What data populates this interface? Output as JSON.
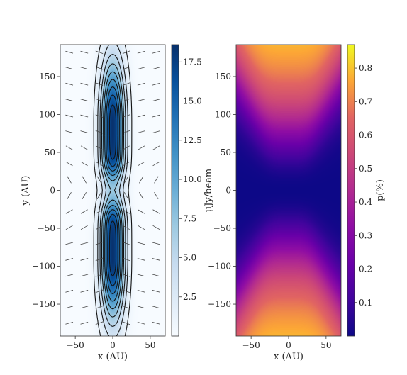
{
  "chart_data": [
    {
      "type": "heatmap",
      "subtype": "contour-with-polarization-vectors",
      "xlabel": "x (AU)",
      "ylabel": "y (AU)",
      "xlim": [
        -70,
        70
      ],
      "ylim": [
        -192,
        192
      ],
      "xticks": [
        -50,
        0,
        50
      ],
      "xtick_labels": [
        "−50",
        "0",
        "50"
      ],
      "yticks": [
        -150,
        -100,
        -50,
        0,
        50,
        100,
        150
      ],
      "ytick_labels": [
        "−150",
        "−100",
        "−50",
        "0",
        "50",
        "100",
        "150"
      ],
      "colormap": "Blues",
      "colorbar": {
        "label": "μJy/beam",
        "range": [
          0,
          18.6
        ],
        "ticks": [
          2.5,
          5.0,
          7.5,
          10.0,
          12.5,
          15.0,
          17.5
        ],
        "tick_labels": [
          "2.5",
          "5.0",
          "7.5",
          "10.0",
          "12.5",
          "15.0",
          "17.5"
        ]
      },
      "intensity_peaks": [
        {
          "x": 0,
          "y": 90,
          "value": 18.5
        },
        {
          "x": 0,
          "y": -90,
          "value": 18.5
        }
      ],
      "intensity_at_center": 6.5,
      "contour_levels": [
        1,
        3,
        5,
        7,
        9,
        11,
        13,
        15,
        17
      ],
      "vectors": {
        "x": [
          -58,
          -38,
          -18,
          18,
          38,
          58
        ],
        "y": [
          -175,
          -154,
          -133,
          -112,
          -91,
          -70,
          -49,
          -28,
          -7,
          14,
          35,
          56,
          77,
          98,
          119,
          140,
          161,
          182
        ]
      }
    },
    {
      "type": "heatmap",
      "xlabel": "x (AU)",
      "ylabel": "",
      "xlim": [
        -70,
        70
      ],
      "ylim": [
        -192,
        192
      ],
      "xticks": [
        -50,
        0,
        50
      ],
      "xtick_labels": [
        "−50",
        "0",
        "50"
      ],
      "yticks": [
        -150,
        -100,
        -50,
        0,
        50,
        100,
        150
      ],
      "ytick_labels": [
        "−150",
        "−100",
        "−50",
        "0",
        "50",
        "100",
        "150"
      ],
      "colormap": "plasma",
      "colorbar": {
        "label": "p(%)",
        "range": [
          0,
          0.87
        ],
        "ticks": [
          0.1,
          0.2,
          0.3,
          0.4,
          0.5,
          0.6,
          0.7,
          0.8
        ],
        "tick_labels": [
          "0.1",
          "0.2",
          "0.3",
          "0.4",
          "0.5",
          "0.6",
          "0.7",
          "0.8"
        ]
      },
      "pattern": "polarization fraction ≈0 along the midplane (y≈0) and at the x-edges near the midplane, rising to ≈0.87 near |y|≈190 at x≈0"
    }
  ]
}
